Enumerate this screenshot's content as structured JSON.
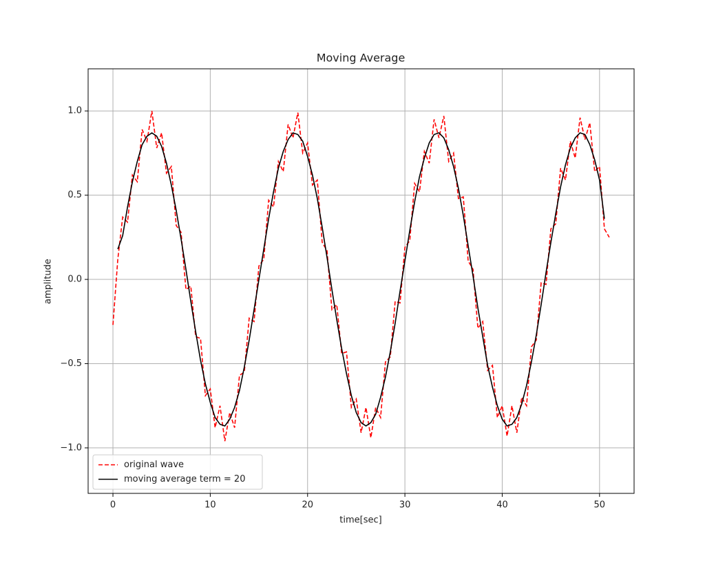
{
  "chart_data": {
    "type": "line",
    "title": "Moving Average",
    "x_label": "time[sec]",
    "y_label": "amplitude",
    "x": [
      0,
      0.5,
      1,
      1.5,
      2,
      2.5,
      3,
      3.5,
      4,
      4.5,
      5,
      5.5,
      6,
      6.5,
      7,
      7.5,
      8,
      8.5,
      9,
      9.5,
      10,
      10.5,
      11,
      11.5,
      12,
      12.5,
      13,
      13.5,
      14,
      14.5,
      15,
      15.5,
      16,
      16.5,
      17,
      17.5,
      18,
      18.5,
      19,
      19.5,
      20,
      20.5,
      21,
      21.5,
      22,
      22.5,
      23,
      23.5,
      24,
      24.5,
      25,
      25.5,
      26,
      26.5,
      27,
      27.5,
      28,
      28.5,
      29,
      29.5,
      30,
      30.5,
      31,
      31.5,
      32,
      32.5,
      33,
      33.5,
      34,
      34.5,
      35,
      35.5,
      36,
      36.5,
      37,
      37.5,
      38,
      38.5,
      39,
      39.5,
      40,
      40.5,
      41,
      41.5,
      42,
      42.5,
      43,
      43.5,
      44,
      44.5,
      45,
      45.5,
      46,
      46.5,
      47,
      47.5,
      48,
      48.5,
      49,
      49.5,
      50,
      50.5,
      51
    ],
    "series": [
      {
        "name": "original wave",
        "color": "#ff0000",
        "linestyle": "dashed",
        "values": [
          -0.27,
          0.12,
          0.37,
          0.34,
          0.62,
          0.58,
          0.89,
          0.82,
          1.0,
          0.78,
          0.87,
          0.63,
          0.67,
          0.32,
          0.28,
          -0.06,
          -0.04,
          -0.34,
          -0.35,
          -0.69,
          -0.65,
          -0.88,
          -0.75,
          -0.96,
          -0.79,
          -0.88,
          -0.57,
          -0.55,
          -0.23,
          -0.25,
          0.08,
          0.12,
          0.47,
          0.43,
          0.7,
          0.64,
          0.92,
          0.84,
          0.99,
          0.75,
          0.81,
          0.56,
          0.59,
          0.22,
          0.17,
          -0.18,
          -0.15,
          -0.44,
          -0.43,
          -0.76,
          -0.71,
          -0.91,
          -0.76,
          -0.94,
          -0.76,
          -0.82,
          -0.49,
          -0.46,
          -0.13,
          -0.14,
          0.19,
          0.23,
          0.57,
          0.52,
          0.76,
          0.69,
          0.95,
          0.84,
          0.97,
          0.7,
          0.75,
          0.48,
          0.49,
          0.11,
          0.06,
          -0.29,
          -0.25,
          -0.54,
          -0.51,
          -0.82,
          -0.75,
          -0.93,
          -0.75,
          -0.91,
          -0.7,
          -0.75,
          -0.4,
          -0.36,
          -0.02,
          -0.03,
          0.3,
          0.33,
          0.66,
          0.59,
          0.82,
          0.72,
          0.96,
          0.83,
          0.93,
          0.64,
          0.67,
          0.3,
          0.25
        ]
      },
      {
        "name": "moving average term = 20",
        "color": "#000000",
        "linestyle": "solid",
        "values": [
          null,
          0.18,
          0.26,
          0.43,
          0.58,
          0.7,
          0.8,
          0.85,
          0.87,
          0.85,
          0.79,
          0.69,
          0.56,
          0.41,
          0.24,
          0.06,
          -0.13,
          -0.31,
          -0.48,
          -0.62,
          -0.73,
          -0.82,
          -0.86,
          -0.87,
          -0.83,
          -0.76,
          -0.66,
          -0.52,
          -0.36,
          -0.18,
          0.0,
          0.18,
          0.36,
          0.52,
          0.66,
          0.76,
          0.83,
          0.87,
          0.86,
          0.82,
          0.73,
          0.62,
          0.48,
          0.31,
          0.13,
          -0.06,
          -0.24,
          -0.41,
          -0.56,
          -0.69,
          -0.79,
          -0.85,
          -0.87,
          -0.85,
          -0.8,
          -0.7,
          -0.58,
          -0.43,
          -0.26,
          -0.07,
          0.11,
          0.29,
          0.46,
          0.61,
          0.72,
          0.81,
          0.86,
          0.87,
          0.84,
          0.77,
          0.67,
          0.54,
          0.38,
          0.2,
          0.02,
          -0.17,
          -0.34,
          -0.51,
          -0.64,
          -0.75,
          -0.83,
          -0.87,
          -0.86,
          -0.82,
          -0.74,
          -0.63,
          -0.49,
          -0.33,
          -0.15,
          0.04,
          0.22,
          0.39,
          0.55,
          0.68,
          0.78,
          0.84,
          0.87,
          0.86,
          0.8,
          0.71,
          0.59,
          0.36,
          null
        ]
      }
    ],
    "xlim": [
      -2.55,
      53.55
    ],
    "xticks": [
      0,
      10,
      20,
      30,
      40,
      50
    ],
    "ylim": [
      -1.27,
      1.25
    ],
    "yticks": [
      {
        "value": -1,
        "label": "−1.0"
      },
      {
        "value": -0.5,
        "label": "−0.5"
      },
      {
        "value": 0,
        "label": "0.0"
      },
      {
        "value": 0.5,
        "label": "0.5"
      },
      {
        "value": 1,
        "label": "1.0"
      }
    ],
    "grid": true,
    "legend": "lower left"
  }
}
